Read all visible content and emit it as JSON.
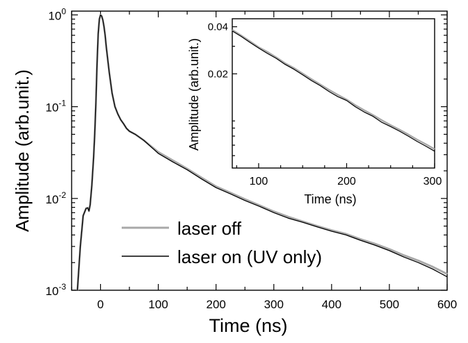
{
  "chart_data": [
    {
      "type": "line",
      "xlabel": "Time (ns)",
      "ylabel": "Amplitude (arb.unit.)",
      "xlim": [
        -50,
        600
      ],
      "ylim": [
        0.001,
        1.1
      ],
      "yscale": "log",
      "xticks": [
        0,
        100,
        200,
        300,
        400,
        500,
        600
      ],
      "xtick_labels": [
        "0",
        "100",
        "200",
        "300",
        "400",
        "500",
        "600"
      ],
      "yticks": [
        0.001,
        0.01,
        0.1,
        1
      ],
      "ytick_labels": [
        {
          "base": "10",
          "exp": "-3"
        },
        {
          "base": "10",
          "exp": "-2"
        },
        {
          "base": "10",
          "exp": "-1"
        },
        {
          "base": "10",
          "exp": "0"
        }
      ],
      "legend_position": "bottom-center",
      "series": [
        {
          "name": "laser off",
          "color": "#a8a8a8",
          "x": [
            -40,
            -35,
            -30,
            -25,
            -22,
            -20,
            -18,
            -15,
            -12,
            -10,
            -8,
            -6,
            -4,
            -2,
            0,
            2,
            4,
            6,
            8,
            10,
            15,
            20,
            25,
            30,
            35,
            40,
            45,
            50,
            60,
            75,
            100,
            125,
            150,
            175,
            200,
            225,
            250,
            275,
            300,
            325,
            350,
            375,
            400,
            425,
            450,
            475,
            500,
            525,
            550,
            575,
            600
          ],
          "y": [
            0.001,
            0.003,
            0.0065,
            0.0078,
            0.0079,
            0.0073,
            0.0085,
            0.014,
            0.028,
            0.05,
            0.11,
            0.3,
            0.62,
            0.9,
            1.0,
            0.97,
            0.88,
            0.75,
            0.6,
            0.45,
            0.24,
            0.14,
            0.1,
            0.083,
            0.072,
            0.065,
            0.058,
            0.054,
            0.05,
            0.043,
            0.032,
            0.026,
            0.021,
            0.0168,
            0.0135,
            0.0115,
            0.0098,
            0.0084,
            0.0072,
            0.0063,
            0.0056,
            0.005,
            0.0045,
            0.0041,
            0.0036,
            0.0032,
            0.0028,
            0.0024,
            0.0021,
            0.0018,
            0.0015
          ]
        },
        {
          "name": "laser on (UV only)",
          "color": "#000000",
          "x": [
            -40,
            -35,
            -30,
            -25,
            -22,
            -20,
            -18,
            -15,
            -12,
            -10,
            -8,
            -6,
            -4,
            -2,
            0,
            2,
            4,
            6,
            8,
            10,
            15,
            20,
            25,
            30,
            35,
            40,
            45,
            50,
            60,
            75,
            100,
            125,
            150,
            175,
            200,
            225,
            250,
            275,
            300,
            325,
            350,
            375,
            400,
            425,
            450,
            475,
            500,
            525,
            550,
            575,
            600
          ],
          "y": [
            0.001,
            0.003,
            0.0065,
            0.0078,
            0.0079,
            0.0073,
            0.0085,
            0.014,
            0.028,
            0.05,
            0.11,
            0.3,
            0.62,
            0.9,
            1.0,
            0.97,
            0.88,
            0.75,
            0.6,
            0.45,
            0.24,
            0.14,
            0.1,
            0.083,
            0.072,
            0.065,
            0.058,
            0.054,
            0.05,
            0.043,
            0.031,
            0.025,
            0.0205,
            0.0163,
            0.0131,
            0.0112,
            0.0095,
            0.0082,
            0.007,
            0.0061,
            0.0055,
            0.0049,
            0.0044,
            0.004,
            0.0035,
            0.0031,
            0.0027,
            0.0023,
            0.002,
            0.0017,
            0.0014
          ]
        }
      ]
    },
    {
      "type": "line",
      "xlabel": "Time (ns)",
      "ylabel": "Amplitude (arb.unit.)",
      "xlim": [
        70,
        300
      ],
      "ylim": [
        0.005,
        0.045
      ],
      "yscale": "log",
      "xticks": [
        100,
        200,
        300
      ],
      "xtick_labels": [
        "100",
        "200",
        "300"
      ],
      "yticks": [
        0.02,
        0.04
      ],
      "ytick_labels": [
        "0.02",
        "0.04"
      ],
      "series": [
        {
          "name": "laser off",
          "color": "#a8a8a8",
          "x": [
            70,
            80,
            90,
            100,
            110,
            120,
            130,
            140,
            150,
            160,
            170,
            180,
            190,
            200,
            210,
            220,
            230,
            240,
            250,
            260,
            270,
            280,
            290,
            300
          ],
          "y": [
            0.0382,
            0.0352,
            0.0323,
            0.0296,
            0.0276,
            0.0255,
            0.0234,
            0.0218,
            0.0201,
            0.0185,
            0.0171,
            0.0158,
            0.0147,
            0.0137,
            0.0126,
            0.0117,
            0.0109,
            0.0101,
            0.0094,
            0.0088,
            0.0082,
            0.0076,
            0.0071,
            0.0066
          ]
        },
        {
          "name": "laser on (UV only)",
          "color": "#000000",
          "x": [
            70,
            80,
            90,
            100,
            110,
            120,
            130,
            140,
            150,
            160,
            170,
            180,
            190,
            200,
            210,
            220,
            230,
            240,
            250,
            260,
            270,
            280,
            290,
            300
          ],
          "y": [
            0.0376,
            0.0347,
            0.0318,
            0.0292,
            0.027,
            0.0251,
            0.023,
            0.0214,
            0.0197,
            0.0181,
            0.0168,
            0.0154,
            0.0143,
            0.0135,
            0.0123,
            0.0114,
            0.0107,
            0.0098,
            0.0092,
            0.0086,
            0.008,
            0.0074,
            0.0069,
            0.0064
          ]
        }
      ]
    }
  ]
}
